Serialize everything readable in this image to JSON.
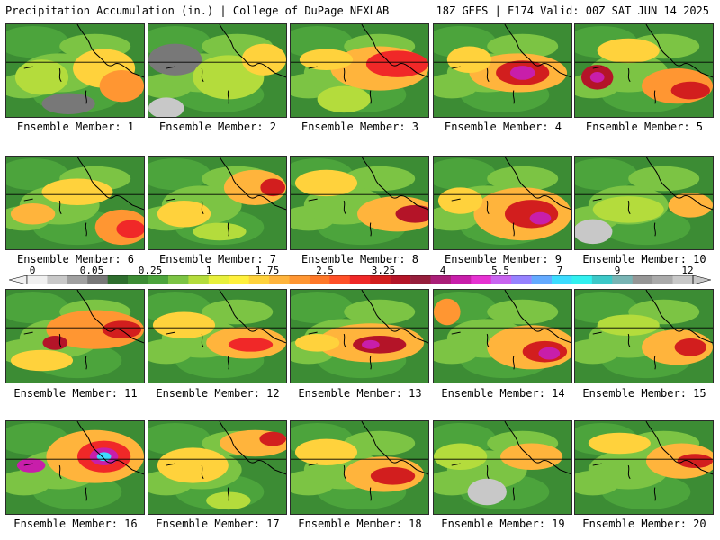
{
  "header": {
    "title_left": "Precipitation Accumulation (in.) | College of DuPage NEXLAB",
    "title_right": "18Z GEFS | F174 Valid: 00Z SAT JUN 14 2025"
  },
  "members": [
    {
      "label": "Ensemble Member: 1",
      "max_level": "1.75"
    },
    {
      "label": "Ensemble Member: 2",
      "max_level": "1"
    },
    {
      "label": "Ensemble Member: 3",
      "max_level": "3.25"
    },
    {
      "label": "Ensemble Member: 4",
      "max_level": "5.5"
    },
    {
      "label": "Ensemble Member: 5",
      "max_level": "4"
    },
    {
      "label": "Ensemble Member: 6",
      "max_level": "3.25"
    },
    {
      "label": "Ensemble Member: 7",
      "max_level": "3.25"
    },
    {
      "label": "Ensemble Member: 8",
      "max_level": "4"
    },
    {
      "label": "Ensemble Member: 9",
      "max_level": "5.5"
    },
    {
      "label": "Ensemble Member: 10",
      "max_level": "2.5"
    },
    {
      "label": "Ensemble Member: 11",
      "max_level": "4"
    },
    {
      "label": "Ensemble Member: 12",
      "max_level": "3.25"
    },
    {
      "label": "Ensemble Member: 13",
      "max_level": "5.5"
    },
    {
      "label": "Ensemble Member: 14",
      "max_level": "5.5"
    },
    {
      "label": "Ensemble Member: 15",
      "max_level": "3.25"
    },
    {
      "label": "Ensemble Member: 16",
      "max_level": "7"
    },
    {
      "label": "Ensemble Member: 17",
      "max_level": "3.25"
    },
    {
      "label": "Ensemble Member: 18",
      "max_level": "3.25"
    },
    {
      "label": "Ensemble Member: 19",
      "max_level": "1.75"
    },
    {
      "label": "Ensemble Member: 20",
      "max_level": "3.25"
    }
  ],
  "colorbar": {
    "tick_labels": [
      "0",
      "0.05",
      "0.25",
      "1",
      "1.75",
      "2.5",
      "3.25",
      "4",
      "5.5",
      "7",
      "9",
      "12"
    ],
    "colors": [
      "#f0f0f0",
      "#c8c8c8",
      "#a0a0a0",
      "#787878",
      "#2e6e2e",
      "#3c8c34",
      "#4ca43c",
      "#7cc444",
      "#b4dc3c",
      "#e8f03c",
      "#fff03c",
      "#ffd23c",
      "#ffb43c",
      "#ff9632",
      "#ff7828",
      "#ff5028",
      "#f02828",
      "#d21e1e",
      "#b41428",
      "#961e3c",
      "#aa1e78",
      "#c81eaa",
      "#e632d2",
      "#c864f0",
      "#9682ff",
      "#64aaff",
      "#3cdcff",
      "#32f0f0",
      "#3cc8c8",
      "#78b4b4",
      "#969696",
      "#aaaaaa",
      "#c8c8c8"
    ]
  }
}
